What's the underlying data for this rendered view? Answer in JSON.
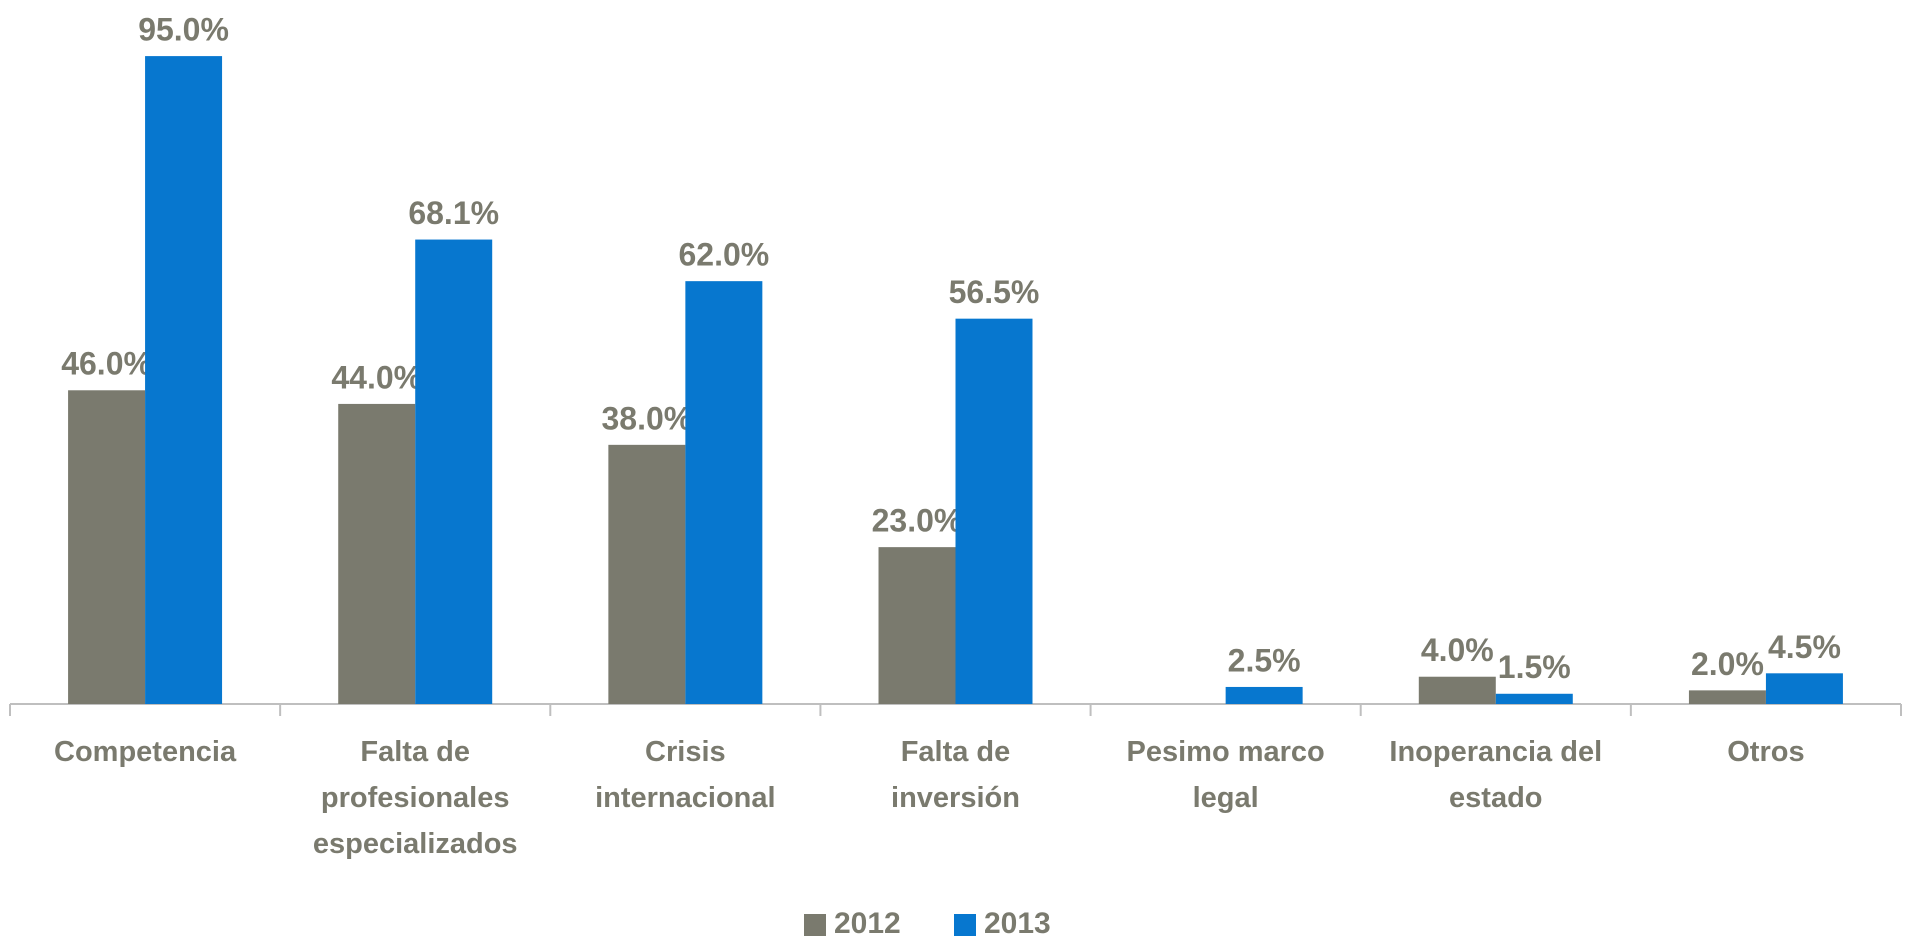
{
  "chart_data": {
    "type": "bar",
    "categories": [
      "Competencia",
      "Falta de profesionales especializados",
      "Crisis internacional",
      "Falta de inversión",
      "Pesimo marco legal",
      "Inoperancia del estado",
      "Otros"
    ],
    "series": [
      {
        "name": "2012",
        "color": "#7a7a6e",
        "values": [
          46.0,
          44.0,
          38.0,
          23.0,
          null,
          4.0,
          2.0
        ],
        "value_labels": [
          "46.0%",
          "44.0%",
          "38.0%",
          "23.0%",
          null,
          "4.0%",
          "2.0%"
        ]
      },
      {
        "name": "2013",
        "color": "#0777cf",
        "values": [
          95.0,
          68.1,
          62.0,
          56.5,
          2.5,
          1.5,
          4.5
        ],
        "value_labels": [
          "95.0%",
          "68.1%",
          "62.0%",
          "56.5%",
          "2.5%",
          "1.5%",
          "4.5%"
        ]
      }
    ],
    "ylim": [
      0,
      100
    ],
    "legend": "bottom"
  }
}
